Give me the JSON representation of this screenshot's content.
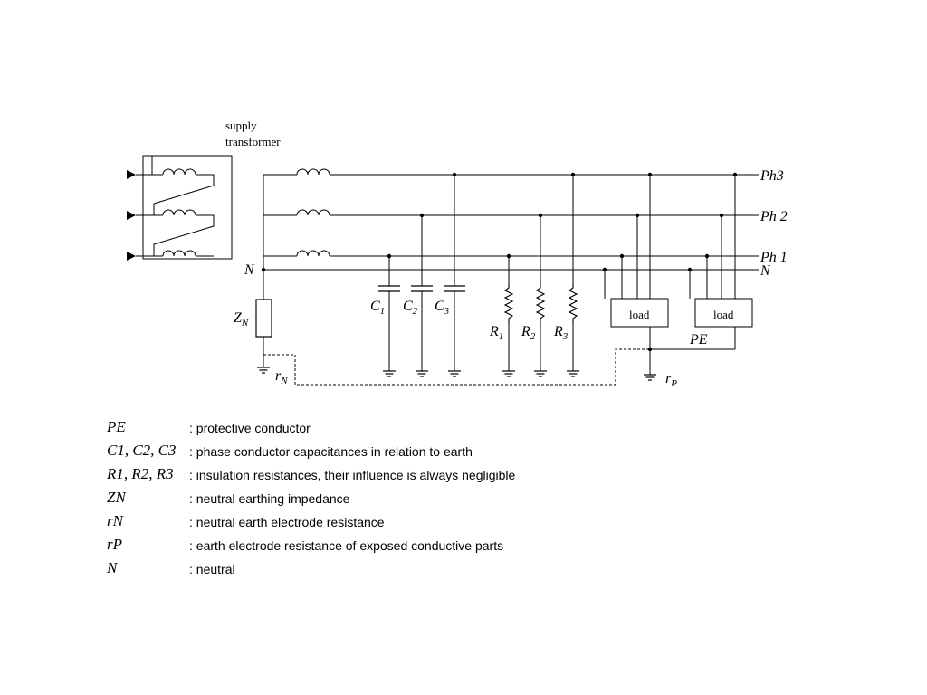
{
  "diagram": {
    "transformer_label_line1": "supply",
    "transformer_label_line2": "transformer",
    "lines": {
      "ph3": "Ph3",
      "ph2": "Ph 2",
      "ph1": "Ph 1",
      "n_right": "N",
      "n_left": "N"
    },
    "components": {
      "zn": {
        "main": "Z",
        "sub": "N"
      },
      "c1": {
        "main": "C",
        "sub": "1"
      },
      "c2": {
        "main": "C",
        "sub": "2"
      },
      "c3": {
        "main": "C",
        "sub": "3"
      },
      "r1": {
        "main": "R",
        "sub": "1"
      },
      "r2": {
        "main": "R",
        "sub": "2"
      },
      "r3": {
        "main": "R",
        "sub": "3"
      },
      "rn": {
        "main": "r",
        "sub": "N"
      },
      "rp": {
        "main": "r",
        "sub": "P"
      },
      "pe": "PE",
      "load1": "load",
      "load2": "load"
    }
  },
  "legend": [
    {
      "symbol": "PE",
      "desc": ": protective conductor"
    },
    {
      "symbol": "C1, C2, C3",
      "desc": ": phase conductor capacitances in relation to earth"
    },
    {
      "symbol": "R1, R2, R3",
      "desc": ": insulation resistances, their influence is always negligible"
    },
    {
      "symbol": "ZN",
      "desc": ": neutral earthing impedance"
    },
    {
      "symbol": "rN",
      "desc": ": neutral earth electrode resistance"
    },
    {
      "symbol": "rP",
      "desc": ": earth electrode resistance of exposed conductive parts"
    },
    {
      "symbol": "N",
      "desc": ": neutral"
    }
  ]
}
